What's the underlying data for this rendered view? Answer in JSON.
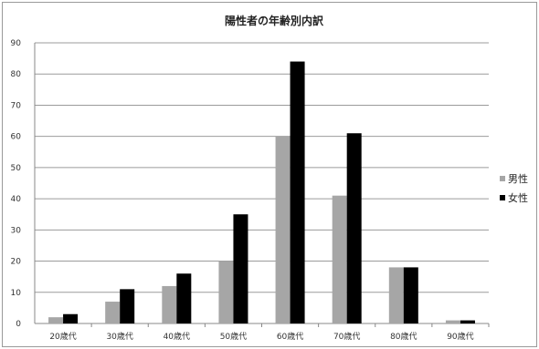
{
  "chart_data": {
    "type": "bar",
    "title": "陽性者の年齢別内訳",
    "categories": [
      "20歳代",
      "30歳代",
      "40歳代",
      "50歳代",
      "60歳代",
      "70歳代",
      "80歳代",
      "90歳代"
    ],
    "series": [
      {
        "name": "男性",
        "values": [
          2,
          7,
          12,
          20,
          60,
          41,
          18,
          1
        ],
        "color": "#a6a6a6"
      },
      {
        "name": "女性",
        "values": [
          3,
          11,
          16,
          35,
          84,
          61,
          18,
          1
        ],
        "color": "#000000"
      }
    ],
    "ylim": [
      0,
      90
    ],
    "yticks": [
      0,
      10,
      20,
      30,
      40,
      50,
      60,
      70,
      80,
      90
    ],
    "grid": true,
    "legend_position": "right"
  }
}
